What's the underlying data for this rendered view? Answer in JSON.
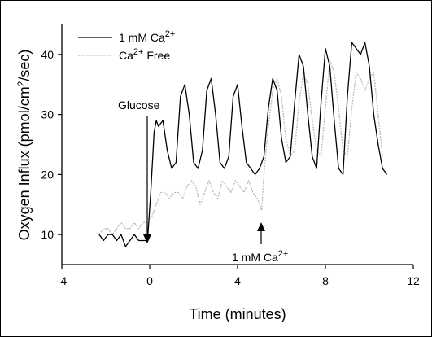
{
  "chart_data": {
    "type": "line",
    "xlabel": "Time (minutes)",
    "ylabel_parts": {
      "main": "Oxygen Influx (pmol/cm",
      "sup": "2",
      "tail": "/sec)"
    },
    "xlim": [
      -4,
      12
    ],
    "ylim": [
      5,
      45
    ],
    "x_ticks": [
      -4,
      0,
      4,
      8,
      12
    ],
    "y_ticks": [
      10,
      20,
      30,
      40
    ],
    "grid": false,
    "legend_position": "top-left",
    "series": [
      {
        "name_parts": {
          "main": "1 mM Ca",
          "sup": "2+",
          "tail": ""
        },
        "color": "#000000",
        "style": "solid",
        "x": [
          -2.3,
          -2.1,
          -1.9,
          -1.7,
          -1.5,
          -1.3,
          -1.1,
          -0.9,
          -0.7,
          -0.5,
          -0.3,
          -0.1,
          0.05,
          0.2,
          0.3,
          0.4,
          0.6,
          0.8,
          1.0,
          1.2,
          1.4,
          1.6,
          1.8,
          2.0,
          2.2,
          2.4,
          2.6,
          2.8,
          3.0,
          3.2,
          3.4,
          3.6,
          3.8,
          4.0,
          4.2,
          4.4,
          4.6,
          4.8,
          5.0,
          5.2,
          5.4,
          5.6,
          5.8,
          6.0,
          6.2,
          6.4,
          6.6,
          6.8,
          7.0,
          7.2,
          7.4,
          7.6,
          7.8,
          8.0,
          8.2,
          8.4,
          8.6,
          8.8,
          9.0,
          9.2,
          9.4,
          9.6,
          9.8,
          10.0,
          10.2,
          10.4,
          10.6,
          10.8
        ],
        "y": [
          10,
          9,
          10,
          10,
          9,
          10,
          8,
          9,
          10,
          9,
          9,
          9,
          17,
          27,
          29,
          28,
          29,
          24,
          21,
          22,
          33,
          35,
          30,
          22,
          21,
          24,
          34,
          36,
          30,
          22,
          21,
          23,
          33,
          35,
          28,
          22,
          21,
          20,
          21,
          23,
          31,
          36,
          34,
          26,
          22,
          23,
          32,
          40,
          38,
          30,
          23,
          21,
          32,
          41,
          38,
          29,
          21,
          20,
          33,
          42,
          41,
          40,
          42,
          38,
          30,
          25,
          21,
          20
        ]
      },
      {
        "name_parts": {
          "main": "Ca",
          "sup": "2+",
          "tail": " Free"
        },
        "color": "#b8b8b8",
        "style": "dotted",
        "x": [
          -2.3,
          -2.1,
          -1.9,
          -1.7,
          -1.5,
          -1.3,
          -1.1,
          -0.9,
          -0.7,
          -0.5,
          -0.3,
          -0.1,
          0.1,
          0.3,
          0.5,
          0.7,
          0.9,
          1.1,
          1.3,
          1.5,
          1.7,
          1.9,
          2.1,
          2.3,
          2.5,
          2.7,
          2.9,
          3.1,
          3.3,
          3.5,
          3.7,
          3.9,
          4.1,
          4.3,
          4.5,
          4.7,
          4.9,
          5.1,
          5.2,
          5.4,
          5.6,
          5.8,
          6.0,
          6.2,
          6.4,
          6.6,
          6.8,
          7.0,
          7.2,
          7.4,
          7.6,
          7.8,
          8.0,
          8.2,
          8.4,
          8.6,
          8.8,
          9.0,
          9.2,
          9.4,
          9.6,
          9.8,
          10.0,
          10.2,
          10.4,
          10.6
        ],
        "y": [
          10,
          11,
          11,
          10,
          11,
          12,
          11,
          11,
          12,
          11,
          12,
          12,
          13,
          15,
          17,
          17,
          16,
          17,
          17,
          16,
          18,
          19,
          18,
          15,
          17,
          19,
          17,
          16,
          19,
          18,
          17,
          19,
          18,
          17,
          19,
          17,
          16,
          14,
          20,
          28,
          34,
          36,
          33,
          26,
          23,
          24,
          32,
          37,
          35,
          29,
          24,
          23,
          31,
          39,
          37,
          31,
          24,
          23,
          31,
          37,
          36,
          34,
          36,
          37,
          30,
          23
        ]
      }
    ],
    "annotations": [
      {
        "text": "Glucose",
        "x": 0,
        "y": 13
      },
      {
        "text_parts": {
          "main": "1 mM Ca",
          "sup": "2+",
          "tail": ""
        },
        "x": 5.1,
        "y": 9
      }
    ]
  }
}
